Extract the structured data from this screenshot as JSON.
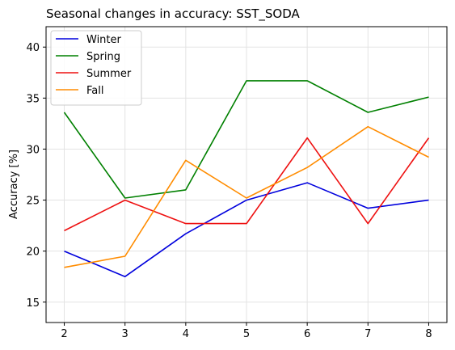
{
  "chart_data": {
    "type": "line",
    "title": "Seasonal changes in accuracy: SST_SODA",
    "xlabel": "",
    "ylabel": "Accuracy [%]",
    "x": [
      2,
      3,
      4,
      5,
      6,
      7,
      8
    ],
    "xlim": [
      1.7,
      8.3
    ],
    "ylim": [
      13,
      42
    ],
    "xticks": [
      2,
      3,
      4,
      5,
      6,
      7,
      8
    ],
    "yticks": [
      15,
      20,
      25,
      30,
      35,
      40
    ],
    "grid": true,
    "legend_position": "top-left",
    "series": [
      {
        "name": "Winter",
        "color": "#0000dd",
        "values": [
          20.0,
          17.5,
          21.7,
          25.0,
          26.7,
          24.2,
          25.0
        ]
      },
      {
        "name": "Spring",
        "color": "#008000",
        "values": [
          33.6,
          25.2,
          26.0,
          36.7,
          36.7,
          33.6,
          35.1
        ]
      },
      {
        "name": "Summer",
        "color": "#ee1111",
        "values": [
          22.0,
          25.0,
          22.7,
          22.7,
          31.1,
          22.7,
          31.1
        ]
      },
      {
        "name": "Fall",
        "color": "#ff8c00",
        "values": [
          18.4,
          19.5,
          28.9,
          25.2,
          28.2,
          32.2,
          29.2
        ]
      }
    ]
  }
}
